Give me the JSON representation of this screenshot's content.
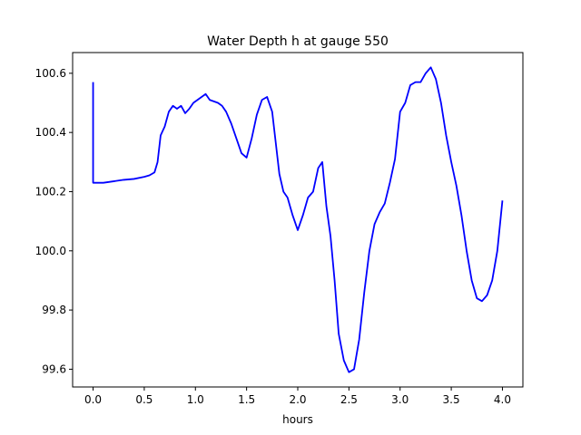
{
  "chart_data": {
    "type": "line",
    "title": "Water Depth h at gauge 550",
    "xlabel": "hours",
    "ylabel": "",
    "xlim": [
      -0.2,
      4.2
    ],
    "ylim": [
      99.54,
      100.67
    ],
    "x_ticks": [
      0.0,
      0.5,
      1.0,
      1.5,
      2.0,
      2.5,
      3.0,
      3.5,
      4.0
    ],
    "x_tick_labels": [
      "0.0",
      "0.5",
      "1.0",
      "1.5",
      "2.0",
      "2.5",
      "3.0",
      "3.5",
      "4.0"
    ],
    "y_ticks": [
      99.6,
      99.8,
      100.0,
      100.2,
      100.4,
      100.6
    ],
    "y_tick_labels": [
      "99.6",
      "99.8",
      "100.0",
      "100.2",
      "100.4",
      "100.6"
    ],
    "grid": false,
    "line_color": "#0000ff",
    "series": [
      {
        "x": [
          0.0,
          0.0,
          0.02,
          0.1,
          0.2,
          0.3,
          0.4,
          0.5,
          0.55,
          0.6,
          0.63,
          0.66,
          0.7,
          0.74,
          0.78,
          0.82,
          0.86,
          0.9,
          0.94,
          0.98,
          1.02,
          1.06,
          1.1,
          1.14,
          1.18,
          1.22,
          1.26,
          1.3,
          1.35,
          1.4,
          1.45,
          1.5,
          1.55,
          1.6,
          1.65,
          1.7,
          1.75,
          1.78,
          1.82,
          1.86,
          1.9,
          1.95,
          2.0,
          2.05,
          2.1,
          2.15,
          2.2,
          2.24,
          2.28,
          2.32,
          2.36,
          2.4,
          2.45,
          2.5,
          2.55,
          2.6,
          2.65,
          2.7,
          2.75,
          2.8,
          2.85,
          2.9,
          2.95,
          3.0,
          3.05,
          3.1,
          3.15,
          3.2,
          3.25,
          3.3,
          3.35,
          3.4,
          3.45,
          3.5,
          3.55,
          3.6,
          3.65,
          3.7,
          3.75,
          3.8,
          3.85,
          3.9,
          3.95,
          4.0
        ],
        "y": [
          100.57,
          100.23,
          100.23,
          100.23,
          100.235,
          100.24,
          100.243,
          100.25,
          100.255,
          100.265,
          100.3,
          100.39,
          100.42,
          100.47,
          100.49,
          100.48,
          100.49,
          100.465,
          100.48,
          100.5,
          100.51,
          100.52,
          100.53,
          100.51,
          100.505,
          100.5,
          100.49,
          100.47,
          100.43,
          100.38,
          100.33,
          100.315,
          100.38,
          100.46,
          100.51,
          100.52,
          100.47,
          100.38,
          100.26,
          100.2,
          100.18,
          100.12,
          100.07,
          100.12,
          100.18,
          100.2,
          100.28,
          100.3,
          100.15,
          100.05,
          99.9,
          99.72,
          99.63,
          99.59,
          99.6,
          99.7,
          99.86,
          100.0,
          100.09,
          100.13,
          100.16,
          100.23,
          100.31,
          100.47,
          100.5,
          100.56,
          100.57,
          100.57,
          100.6,
          100.62,
          100.58,
          100.5,
          100.39,
          100.3,
          100.22,
          100.12,
          100.0,
          99.9,
          99.84,
          99.83,
          99.85,
          99.9,
          100.0,
          100.17
        ]
      }
    ]
  }
}
